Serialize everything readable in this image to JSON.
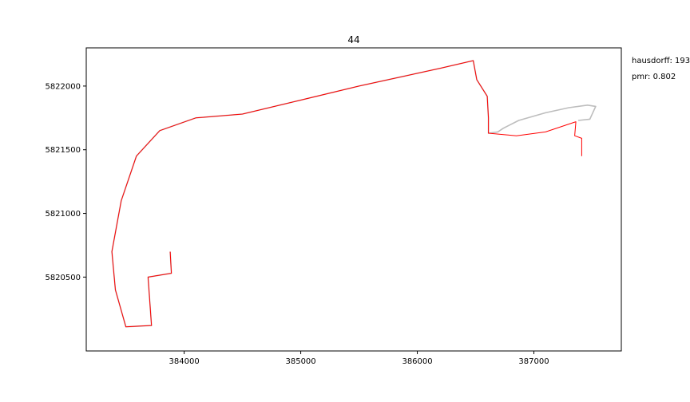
{
  "chart_data": {
    "type": "line",
    "title": "44",
    "xlabel": "",
    "ylabel": "",
    "xlim": [
      383160,
      387750
    ],
    "ylim": [
      5819920,
      5822300
    ],
    "x_ticks": [
      384000,
      385000,
      386000,
      387000
    ],
    "y_ticks": [
      5820500,
      5821000,
      5821500,
      5822000
    ],
    "grid": false,
    "annotations": [
      {
        "text": "hausdorff: 193"
      },
      {
        "text": "pmr: 0.802"
      }
    ],
    "series": [
      {
        "color": "#bdbdbd",
        "width": 1.6,
        "points": [
          [
            383880,
            5820700
          ],
          [
            383890,
            5820530
          ],
          [
            383690,
            5820500
          ],
          [
            383720,
            5820120
          ],
          [
            383610,
            5820115
          ],
          [
            383500,
            5820110
          ],
          [
            383410,
            5820400
          ],
          [
            383380,
            5820700
          ],
          [
            383460,
            5821100
          ],
          [
            383590,
            5821450
          ],
          [
            383790,
            5821650
          ],
          [
            384100,
            5821750
          ],
          [
            384500,
            5821780
          ],
          [
            385000,
            5821890
          ],
          [
            385500,
            5822000
          ],
          [
            386000,
            5822100
          ],
          [
            386200,
            5822140
          ],
          [
            386480,
            5822200
          ],
          [
            386510,
            5822050
          ],
          [
            386600,
            5821920
          ],
          [
            386610,
            5821750
          ],
          [
            386610,
            5821630
          ],
          [
            386690,
            5821640
          ],
          [
            386740,
            5821670
          ],
          [
            386870,
            5821730
          ],
          [
            387100,
            5821790
          ],
          [
            387300,
            5821830
          ],
          [
            387460,
            5821850
          ],
          [
            387530,
            5821840
          ],
          [
            387480,
            5821740
          ],
          [
            387380,
            5821730
          ]
        ]
      },
      {
        "color": "#ff0000",
        "width": 1.0,
        "points": [
          [
            383880,
            5820700
          ],
          [
            383890,
            5820530
          ],
          [
            383690,
            5820500
          ],
          [
            383720,
            5820120
          ],
          [
            383610,
            5820115
          ],
          [
            383500,
            5820110
          ],
          [
            383410,
            5820400
          ],
          [
            383380,
            5820700
          ],
          [
            383460,
            5821100
          ],
          [
            383590,
            5821450
          ],
          [
            383790,
            5821650
          ],
          [
            384100,
            5821750
          ],
          [
            384500,
            5821780
          ],
          [
            385000,
            5821890
          ],
          [
            385500,
            5822000
          ],
          [
            386000,
            5822100
          ],
          [
            386200,
            5822140
          ],
          [
            386480,
            5822200
          ],
          [
            386510,
            5822050
          ],
          [
            386600,
            5821920
          ],
          [
            386610,
            5821750
          ],
          [
            386610,
            5821630
          ],
          [
            386850,
            5821610
          ],
          [
            387100,
            5821640
          ],
          [
            387360,
            5821720
          ],
          [
            387350,
            5821610
          ],
          [
            387410,
            5821590
          ],
          [
            387410,
            5821450
          ]
        ]
      }
    ]
  }
}
